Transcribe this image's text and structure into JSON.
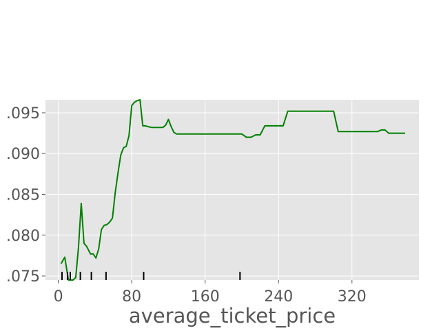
{
  "chart_data": {
    "type": "line",
    "title": "",
    "xlabel": "average_ticket_price",
    "ylabel": "",
    "xlim": [
      -14,
      393
    ],
    "ylim": [
      0.0745,
      0.0966
    ],
    "xticks": [
      0,
      80,
      160,
      240,
      320
    ],
    "yticks": [
      0.075,
      0.08,
      0.085,
      0.09,
      0.095
    ],
    "ytick_labels": [
      ".075",
      ".080",
      ".085",
      ".090",
      ".095"
    ],
    "grid": true,
    "legend": "none",
    "colors": {
      "line": "#008000",
      "background": "#e5e5e5",
      "grid": "#ffffff",
      "rug": "#000000"
    },
    "series": [
      {
        "x": [
          3,
          7,
          11,
          13,
          16,
          19,
          22,
          25,
          28,
          31,
          35,
          38,
          41,
          44,
          47,
          50,
          53,
          56,
          59,
          62,
          65,
          68,
          71,
          74,
          77,
          80,
          83,
          86,
          89,
          92,
          95,
          98,
          102,
          105,
          108,
          111,
          114,
          117,
          120,
          123,
          126,
          129,
          132,
          135,
          138,
          141,
          144,
          147,
          150,
          153,
          156,
          159,
          165,
          170,
          175,
          180,
          185,
          190,
          195,
          200,
          205,
          210,
          215,
          220,
          225,
          230,
          240,
          245,
          250,
          260,
          270,
          280,
          290,
          300,
          305,
          310,
          320,
          330,
          340,
          348,
          352,
          356,
          360,
          364,
          370,
          378
        ],
        "y": [
          0.0765,
          0.0773,
          0.0745,
          0.0745,
          0.0745,
          0.0748,
          0.0785,
          0.0839,
          0.079,
          0.0786,
          0.0777,
          0.0777,
          0.0772,
          0.0783,
          0.0807,
          0.0812,
          0.0813,
          0.0816,
          0.0821,
          0.0852,
          0.0876,
          0.0898,
          0.0907,
          0.0909,
          0.0922,
          0.0959,
          0.0963,
          0.0965,
          0.0966,
          0.0934,
          0.0934,
          0.0933,
          0.0932,
          0.0932,
          0.0932,
          0.0932,
          0.0932,
          0.0935,
          0.0942,
          0.0933,
          0.0926,
          0.0924,
          0.0924,
          0.0924,
          0.0924,
          0.0924,
          0.0924,
          0.0924,
          0.0924,
          0.0924,
          0.0924,
          0.0924,
          0.0924,
          0.0924,
          0.0924,
          0.0924,
          0.0924,
          0.0924,
          0.0924,
          0.0924,
          0.092,
          0.092,
          0.0923,
          0.0923,
          0.0934,
          0.0934,
          0.0934,
          0.0934,
          0.0952,
          0.0952,
          0.0952,
          0.0952,
          0.0952,
          0.0952,
          0.0927,
          0.0927,
          0.0927,
          0.0927,
          0.0927,
          0.0927,
          0.0929,
          0.0929,
          0.0925,
          0.0925,
          0.0925,
          0.0925
        ]
      }
    ],
    "rug_x": [
      4,
      10,
      13,
      24,
      36,
      52,
      93,
      198
    ]
  }
}
